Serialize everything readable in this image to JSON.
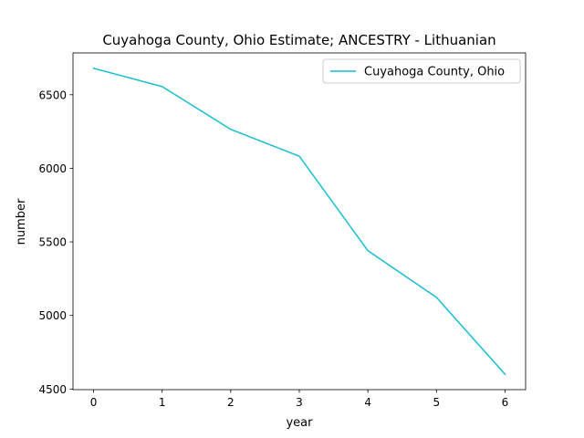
{
  "chart_data": {
    "type": "line",
    "title": "Cuyahoga County, Ohio Estimate; ANCESTRY - Lithuanian",
    "xlabel": "year",
    "ylabel": "number",
    "x": [
      0,
      1,
      2,
      3,
      4,
      5,
      6
    ],
    "series": [
      {
        "name": "Cuyahoga County, Ohio",
        "values": [
          6680,
          6555,
          6265,
          6082,
          5440,
          5123,
          4600
        ],
        "color": "#17becf"
      }
    ],
    "xlim": [
      -0.3,
      6.3
    ],
    "ylim": [
      4496,
      6784
    ],
    "xticks": [
      0,
      1,
      2,
      3,
      4,
      5,
      6
    ],
    "yticks": [
      4500,
      5000,
      5500,
      6000,
      6500
    ],
    "grid": false,
    "legend_position": "top-right"
  }
}
